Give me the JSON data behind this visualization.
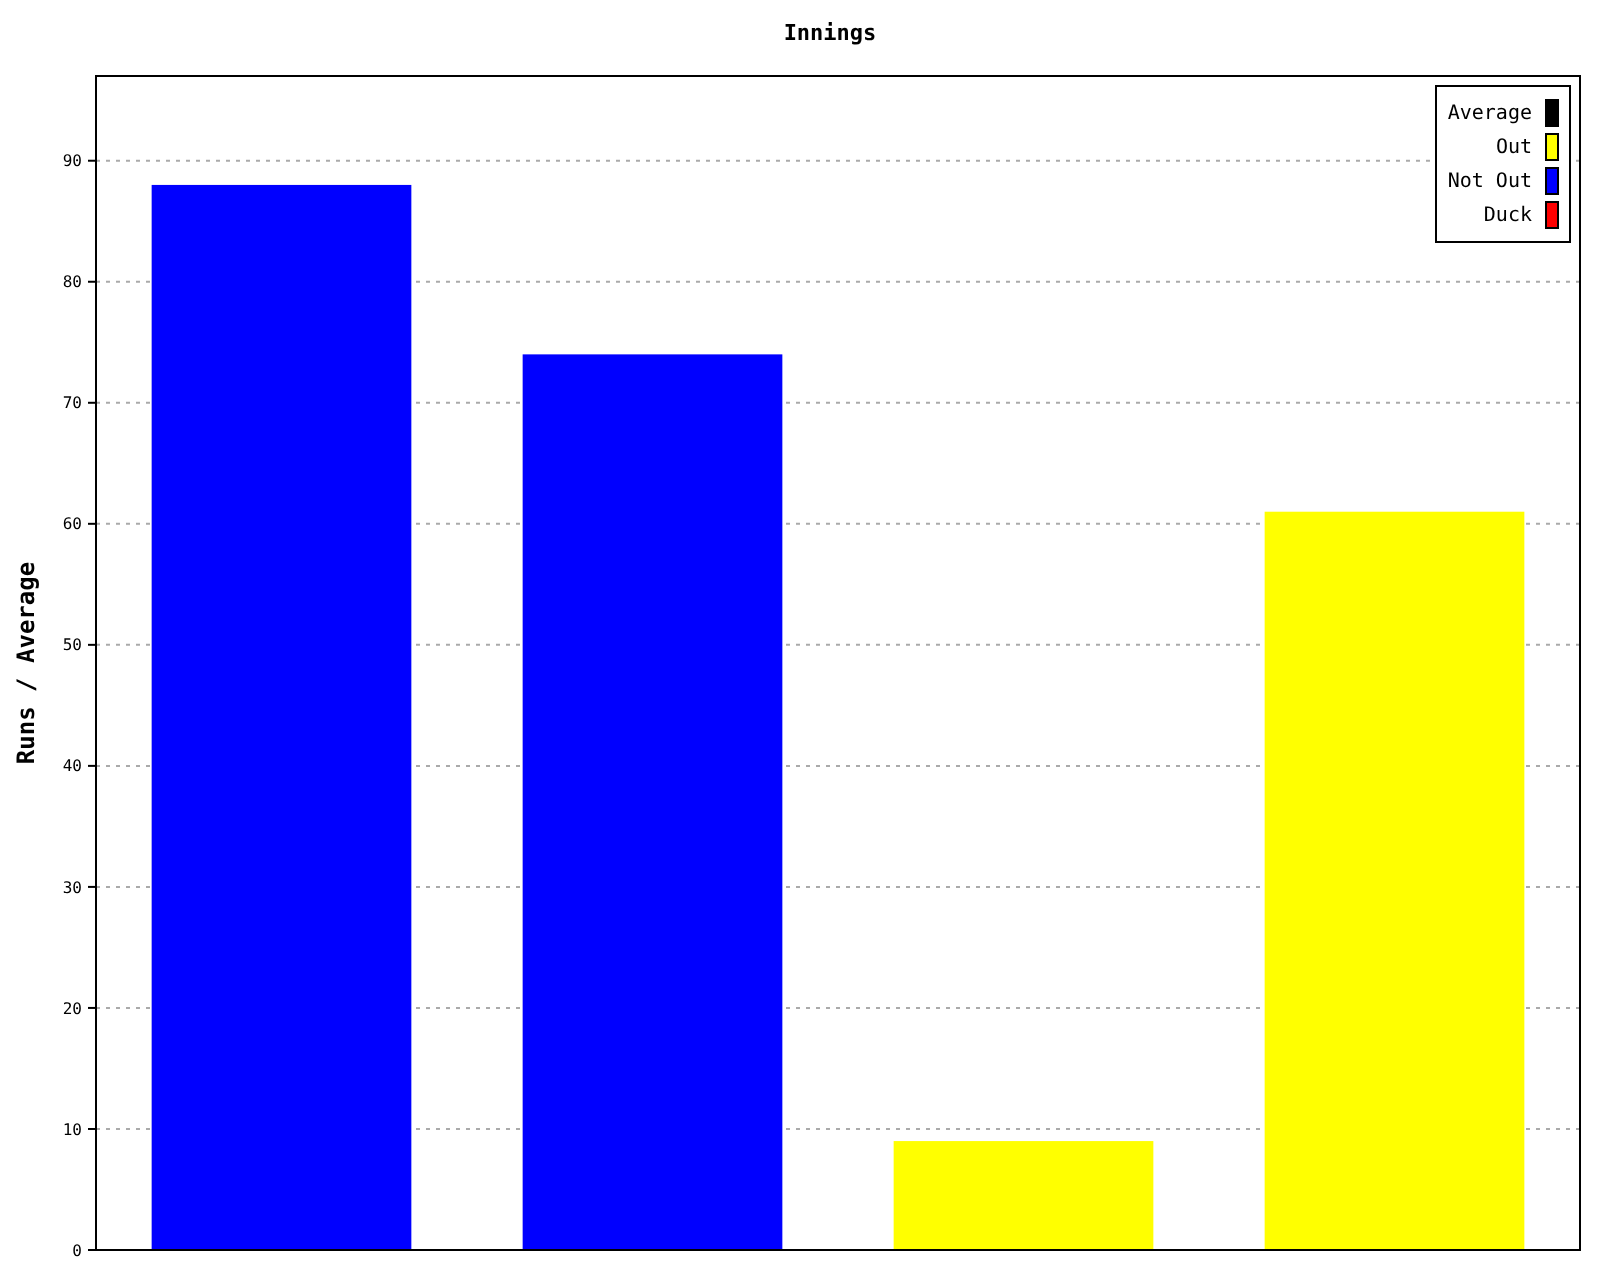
{
  "chart_data": {
    "type": "bar",
    "title": "Innings",
    "ylabel": "Runs / Average",
    "categories": [
      null,
      null,
      null,
      null
    ],
    "stacked": true,
    "series": [
      {
        "name": "Average",
        "color": "#000000",
        "values": [
          null,
          null,
          null,
          null
        ]
      },
      {
        "name": "Out",
        "color": "#ffff00",
        "values": [
          null,
          null,
          9,
          61
        ]
      },
      {
        "name": "Not Out",
        "color": "#0000ff",
        "values": [
          88,
          74,
          null,
          null
        ]
      },
      {
        "name": "Duck",
        "color": "#ff0000",
        "values": [
          null,
          null,
          null,
          null
        ]
      }
    ],
    "ylim": [
      0,
      97
    ],
    "yticks": [
      0,
      10,
      20,
      30,
      40,
      50,
      60,
      70,
      80,
      90
    ],
    "grid": "y",
    "legend": "top right"
  }
}
